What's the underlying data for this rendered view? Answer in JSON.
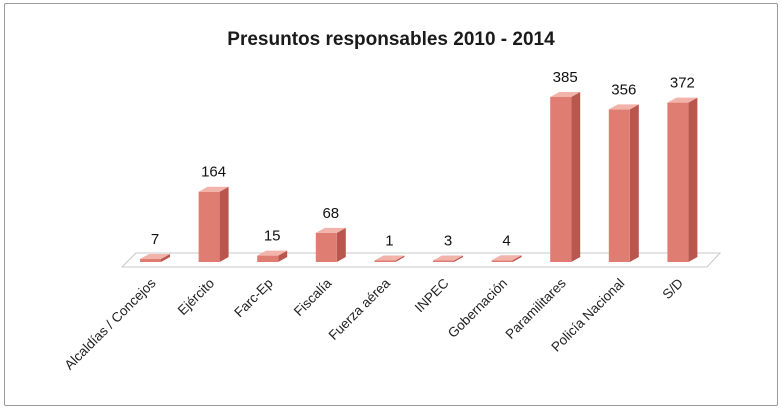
{
  "chart_data": {
    "type": "bar",
    "title": "Presuntos responsables 2010 - 2014",
    "xlabel": "",
    "ylabel": "",
    "categories": [
      "Alcaldías / Concejos",
      "Ejército",
      "Farc-Ep",
      "Fiscalía",
      "Fuerza aérea",
      "INPEC",
      "Gobernación",
      "Paramilitares",
      "Policía Nacional",
      "S/D"
    ],
    "values": [
      7,
      164,
      15,
      68,
      1,
      3,
      4,
      385,
      356,
      372
    ],
    "ylim": [
      0,
      400
    ],
    "grid": false,
    "legend": "none",
    "style": "3d-column",
    "colors": {
      "bar_front": "#e07d72",
      "bar_side": "#b9574f",
      "bar_top": "#f2b3aa",
      "floor": "#ffffff",
      "floor_edge": "#c8c8c8"
    }
  }
}
